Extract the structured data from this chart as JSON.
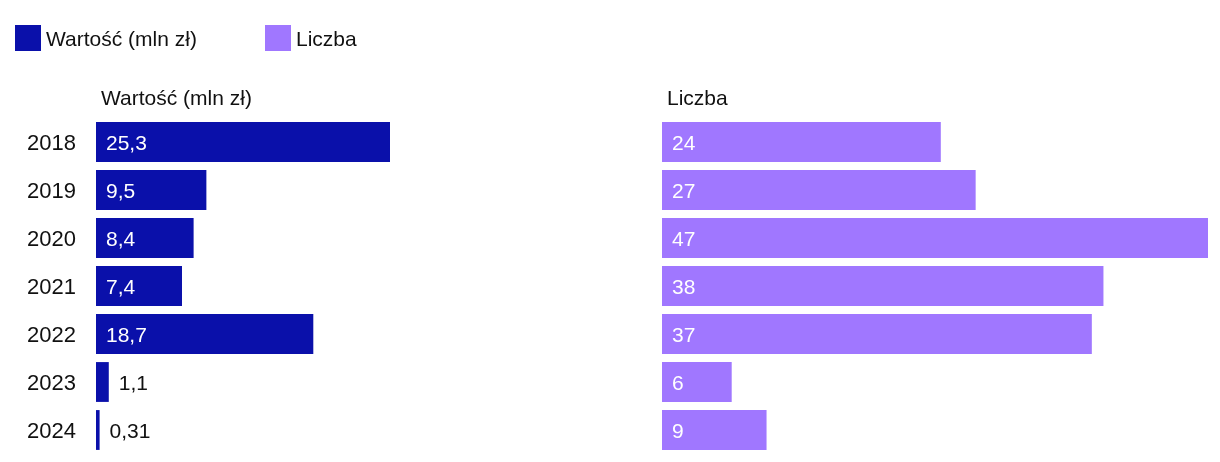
{
  "chart_data": [
    {
      "type": "bar",
      "orientation": "horizontal",
      "title": "Wartość (mln zł)",
      "categories": [
        "2018",
        "2019",
        "2020",
        "2021",
        "2022",
        "2023",
        "2024"
      ],
      "series": [
        {
          "name": "Wartość (mln zł)",
          "color": "#0a10aa",
          "values": [
            25.3,
            9.5,
            8.4,
            7.4,
            18.7,
            1.1,
            0.31
          ],
          "value_labels": [
            "25,3",
            "9,5",
            "8,4",
            "7,4",
            "18,7",
            "1,1",
            "0,31"
          ]
        }
      ],
      "legend": "top left",
      "tick_labels": "y"
    },
    {
      "type": "bar",
      "orientation": "horizontal",
      "title": "Liczba",
      "categories": [
        "2018",
        "2019",
        "2020",
        "2021",
        "2022",
        "2023",
        "2024"
      ],
      "series": [
        {
          "name": "Liczba",
          "color": "#a077ff",
          "values": [
            24,
            27,
            47,
            38,
            37,
            6,
            9
          ],
          "value_labels": [
            "24",
            "27",
            "47",
            "38",
            "37",
            "6",
            "9"
          ]
        }
      ],
      "legend": "top left",
      "tick_labels": false
    }
  ]
}
